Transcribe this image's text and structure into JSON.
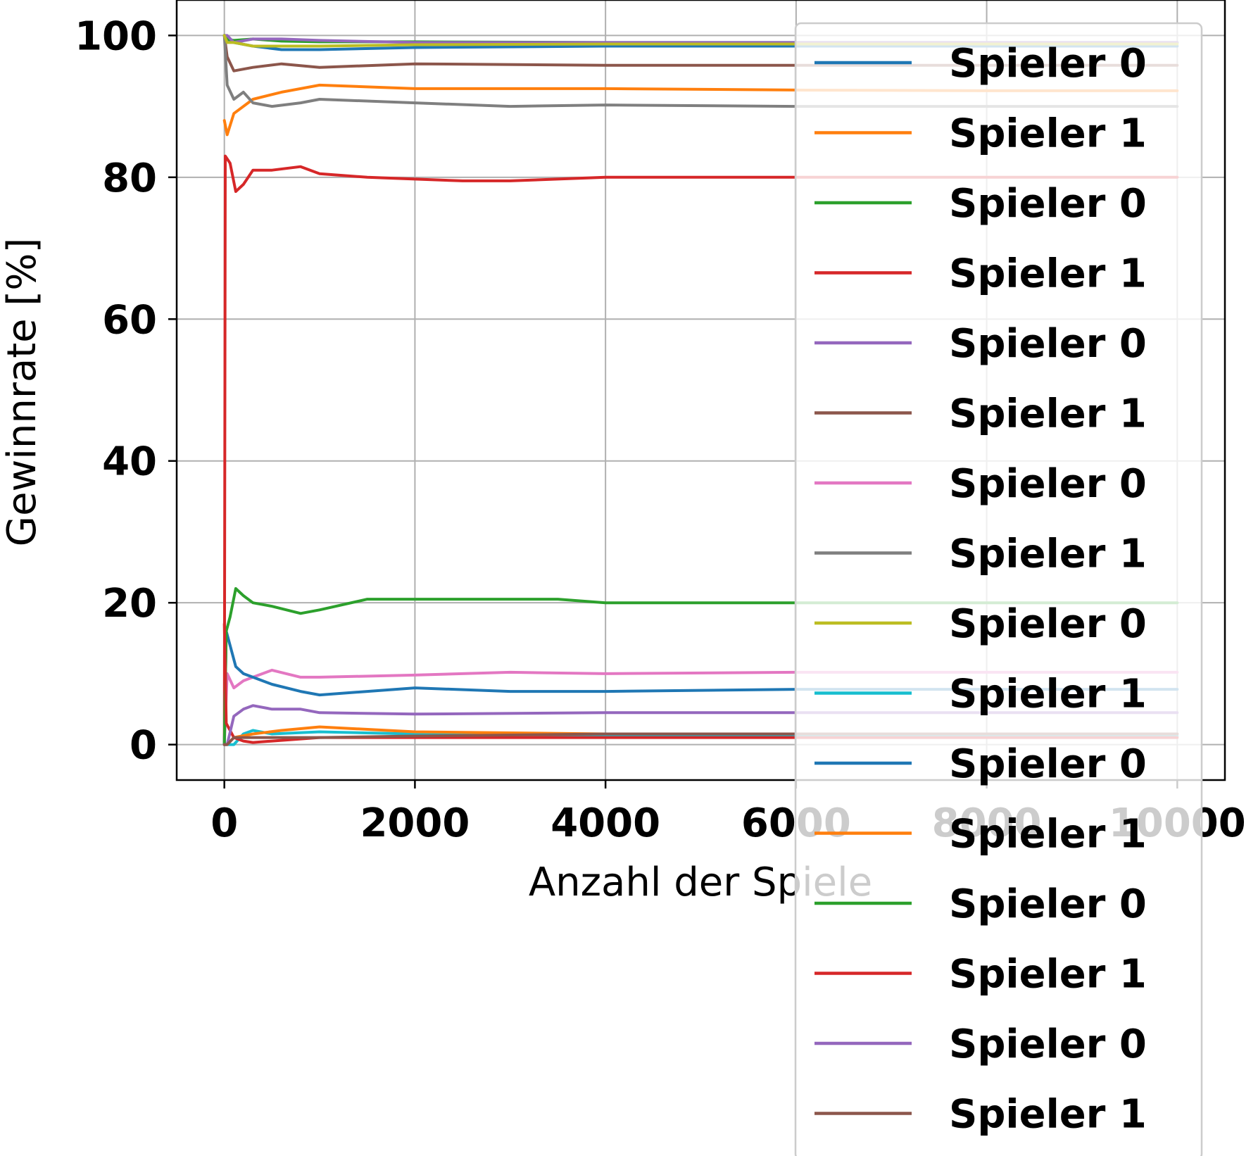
{
  "chart_data": {
    "type": "line",
    "title": "",
    "xlabel": "Anzahl der Spiele",
    "ylabel": "Gewinnrate [%]",
    "xlim": [
      -500,
      10500
    ],
    "ylim": [
      -5,
      105
    ],
    "xticks": [
      0,
      2000,
      4000,
      6000,
      8000,
      10000
    ],
    "xtick_labels": [
      "0",
      "2000",
      "4000",
      "6000",
      "8000",
      "10000"
    ],
    "yticks": [
      0,
      20,
      40,
      60,
      80,
      100
    ],
    "ytick_labels": [
      "0",
      "20",
      "40",
      "60",
      "80",
      "100"
    ],
    "grid": true,
    "legend_position": "upper right",
    "series": [
      {
        "name": "Spieler 0",
        "color": "#1f77b4",
        "x": [
          0,
          30,
          100,
          300,
          600,
          1000,
          2000,
          4000,
          6000,
          8000,
          10000
        ],
        "values": [
          100,
          99.5,
          99,
          98.5,
          98,
          98,
          98.3,
          98.5,
          98.5,
          98.5,
          98.5
        ]
      },
      {
        "name": "Spieler 1",
        "color": "#ff7f0e",
        "x": [
          0,
          30,
          100,
          300,
          600,
          1000,
          2000,
          4000,
          6000,
          8000,
          10000
        ],
        "values": [
          88,
          86,
          89,
          91,
          92,
          93,
          92.5,
          92.5,
          92.3,
          92.2,
          92.2
        ]
      },
      {
        "name": "Spieler 0",
        "color": "#2ca02c",
        "x": [
          0,
          30,
          100,
          300,
          600,
          1000,
          2000,
          4000,
          6000,
          8000,
          10000
        ],
        "values": [
          100,
          99.5,
          99.3,
          99.5,
          99.2,
          99.1,
          99.1,
          99.0,
          99.0,
          99.0,
          99.0
        ]
      },
      {
        "name": "Spieler 1",
        "color": "#d62728",
        "x": [
          0,
          10,
          60,
          120,
          200,
          300,
          500,
          800,
          1000,
          1500,
          2500,
          3000,
          4000,
          6000,
          8000,
          10000
        ],
        "values": [
          0,
          83,
          82,
          78,
          79,
          81,
          81,
          81.5,
          80.5,
          80,
          79.5,
          79.5,
          80,
          80,
          80,
          80
        ]
      },
      {
        "name": "Spieler 0",
        "color": "#9467bd",
        "x": [
          0,
          30,
          100,
          300,
          600,
          1000,
          2000,
          4000,
          6000,
          8000,
          10000
        ],
        "values": [
          100,
          100,
          99,
          99.5,
          99.5,
          99.3,
          99,
          99,
          99,
          99,
          99
        ]
      },
      {
        "name": "Spieler 1",
        "color": "#8c564b",
        "x": [
          0,
          30,
          100,
          300,
          600,
          1000,
          2000,
          4000,
          6000,
          8000,
          10000
        ],
        "values": [
          100,
          97,
          95,
          95.5,
          96,
          95.5,
          96,
          95.8,
          95.8,
          95.8,
          95.8
        ]
      },
      {
        "name": "Spieler 0",
        "color": "#e377c2",
        "x": [
          0,
          30,
          100,
          200,
          300,
          500,
          800,
          1000,
          2000,
          3000,
          4000,
          6000,
          8000,
          10000
        ],
        "values": [
          0,
          10,
          8,
          9,
          9.5,
          10.5,
          9.5,
          9.5,
          9.8,
          10.2,
          10,
          10.2,
          10.2,
          10.2
        ]
      },
      {
        "name": "Spieler 1",
        "color": "#7f7f7f",
        "x": [
          0,
          30,
          100,
          200,
          300,
          500,
          800,
          1000,
          2000,
          3000,
          4000,
          6000,
          8000,
          10000
        ],
        "values": [
          100,
          93,
          91,
          92,
          90.5,
          90,
          90.5,
          91,
          90.5,
          90,
          90.2,
          90,
          90,
          90
        ]
      },
      {
        "name": "Spieler 0",
        "color": "#bcbd22",
        "x": [
          0,
          30,
          100,
          300,
          600,
          1000,
          2000,
          4000,
          6000,
          8000,
          10000
        ],
        "values": [
          100,
          99,
          99,
          98.5,
          98.5,
          98.5,
          98.7,
          98.8,
          98.8,
          98.8,
          98.8
        ]
      },
      {
        "name": "Spieler 1",
        "color": "#17becf",
        "x": [
          0,
          30,
          100,
          200,
          300,
          500,
          1000,
          2000,
          4000,
          6000,
          8000,
          10000
        ],
        "values": [
          0,
          0,
          0,
          1.5,
          2,
          1.5,
          1.8,
          1.5,
          1.3,
          1.2,
          1.2,
          1.2
        ]
      },
      {
        "name": "Spieler 0",
        "color": "#1f77b4",
        "x": [
          0,
          20,
          60,
          120,
          200,
          300,
          500,
          800,
          1000,
          2000,
          3000,
          4000,
          6000,
          8000,
          10000
        ],
        "values": [
          0,
          16,
          14,
          11,
          10,
          9.5,
          8.5,
          7.5,
          7,
          8,
          7.5,
          7.5,
          7.8,
          7.8,
          7.8
        ]
      },
      {
        "name": "Spieler 1",
        "color": "#ff7f0e",
        "x": [
          0,
          30,
          100,
          300,
          600,
          1000,
          2000,
          4000,
          6000,
          8000,
          10000
        ],
        "values": [
          0,
          0,
          1,
          1.5,
          2,
          2.5,
          1.8,
          1.5,
          1.5,
          1.5,
          1.5
        ]
      },
      {
        "name": "Spieler 0",
        "color": "#2ca02c",
        "x": [
          0,
          20,
          60,
          120,
          200,
          300,
          500,
          800,
          1000,
          1500,
          2500,
          3500,
          4000,
          6000,
          8000,
          10000
        ],
        "values": [
          0,
          16,
          18,
          22,
          21,
          20,
          19.5,
          18.5,
          19,
          20.5,
          20.5,
          20.5,
          20,
          20,
          20,
          20
        ]
      },
      {
        "name": "Spieler 1",
        "color": "#d62728",
        "x": [
          0,
          20,
          100,
          200,
          300,
          500,
          1000,
          2000,
          4000,
          6000,
          8000,
          10000
        ],
        "values": [
          17,
          3,
          1,
          0.5,
          0.3,
          0.5,
          1,
          1,
          1,
          1,
          1,
          1
        ]
      },
      {
        "name": "Spieler 0",
        "color": "#9467bd",
        "x": [
          0,
          30,
          100,
          200,
          300,
          500,
          800,
          1000,
          2000,
          4000,
          6000,
          8000,
          10000
        ],
        "values": [
          0,
          0,
          4,
          5,
          5.5,
          5,
          5,
          4.5,
          4.3,
          4.5,
          4.5,
          4.5,
          4.5
        ]
      },
      {
        "name": "Spieler 1",
        "color": "#8c564b",
        "x": [
          0,
          30,
          100,
          300,
          600,
          1000,
          2000,
          4000,
          6000,
          8000,
          10000
        ],
        "values": [
          0,
          0,
          1,
          1,
          1,
          1,
          1.2,
          1.5,
          1.5,
          1.5,
          1.5
        ]
      }
    ]
  }
}
